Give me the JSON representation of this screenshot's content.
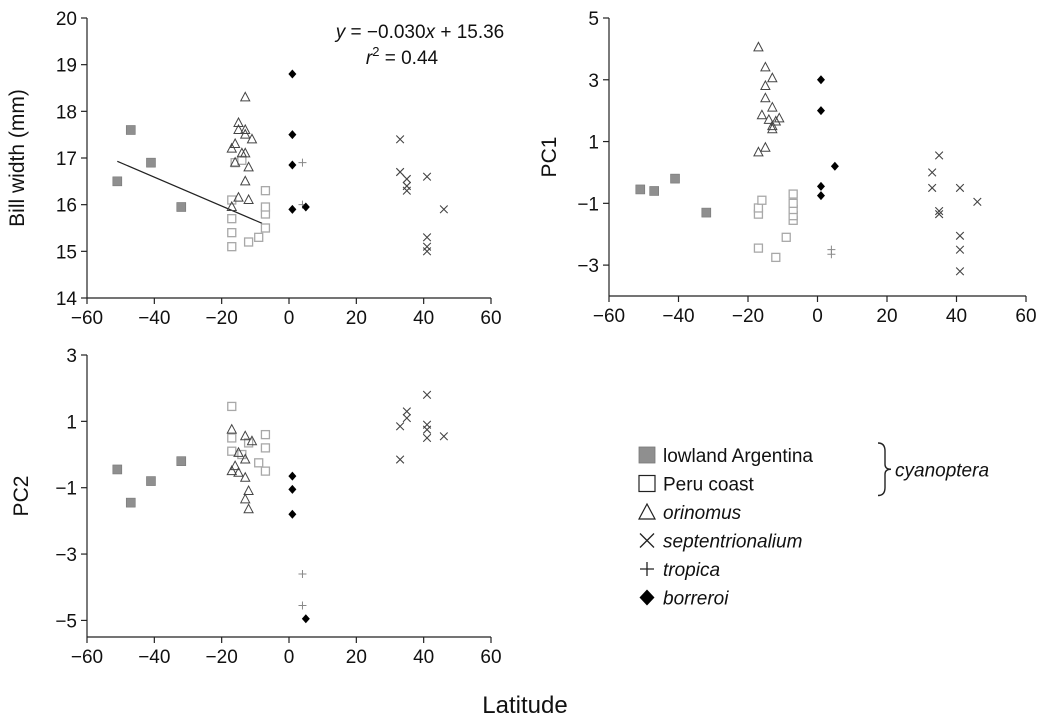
{
  "chart_data": [
    {
      "id": "bill",
      "type": "scatter",
      "xlim": [
        -60,
        60
      ],
      "ylim": [
        14,
        20
      ],
      "xticks": [
        -60,
        -40,
        -20,
        0,
        20,
        40,
        60
      ],
      "yticks": [
        14,
        15,
        16,
        17,
        18,
        19,
        20
      ],
      "ylabel": "Bill width (mm)",
      "equation": {
        "line1": "y = −0.030x + 15.36",
        "line2": "r² = 0.44"
      },
      "regression": {
        "x": [
          -51,
          -8
        ],
        "y": [
          16.93,
          15.6
        ]
      },
      "series": [
        {
          "key": "argentina",
          "points": [
            [
              -51,
              16.5
            ],
            [
              -47,
              17.6
            ],
            [
              -41,
              16.9
            ],
            [
              -32,
              15.95
            ]
          ]
        },
        {
          "key": "peru",
          "points": [
            [
              -17,
              15.1
            ],
            [
              -17,
              15.4
            ],
            [
              -17,
              15.7
            ],
            [
              -16,
              16.9
            ],
            [
              -17,
              16.1
            ],
            [
              -12,
              15.2
            ],
            [
              -9,
              15.3
            ],
            [
              -7,
              15.5
            ],
            [
              -7,
              15.8
            ],
            [
              -7,
              15.95
            ],
            [
              -7,
              16.3
            ],
            [
              -14,
              16.95
            ]
          ]
        },
        {
          "key": "orinomus",
          "points": [
            [
              -13,
              18.3
            ],
            [
              -15,
              17.75
            ],
            [
              -15,
              17.6
            ],
            [
              -13,
              17.6
            ],
            [
              -13,
              17.5
            ],
            [
              -11,
              17.4
            ],
            [
              -16,
              17.3
            ],
            [
              -17,
              17.2
            ],
            [
              -14,
              17.1
            ],
            [
              -13,
              17.1
            ],
            [
              -16,
              16.9
            ],
            [
              -12,
              16.8
            ],
            [
              -13,
              16.5
            ],
            [
              -15,
              16.15
            ],
            [
              -12,
              16.1
            ],
            [
              -17,
              15.95
            ]
          ]
        },
        {
          "key": "septentrionalium",
          "points": [
            [
              33,
              17.4
            ],
            [
              33,
              16.7
            ],
            [
              35,
              16.55
            ],
            [
              35,
              16.4
            ],
            [
              35,
              16.3
            ],
            [
              41,
              16.6
            ],
            [
              46,
              15.9
            ],
            [
              41,
              15.3
            ],
            [
              41,
              15.1
            ],
            [
              41,
              15.0
            ]
          ]
        },
        {
          "key": "tropica",
          "points": [
            [
              4,
              16.9
            ],
            [
              4,
              16.0
            ]
          ]
        },
        {
          "key": "borreroi",
          "points": [
            [
              1,
              18.8
            ],
            [
              1,
              17.5
            ],
            [
              1,
              16.85
            ],
            [
              5,
              15.95
            ],
            [
              1,
              15.9
            ]
          ]
        }
      ]
    },
    {
      "id": "pc1",
      "type": "scatter",
      "xlim": [
        -60,
        60
      ],
      "ylim": [
        -4,
        5
      ],
      "xticks": [
        -60,
        -40,
        -20,
        0,
        20,
        40,
        60
      ],
      "yticks": [
        -3,
        -1,
        1,
        3,
        5
      ],
      "ylabel": "PC1",
      "series": [
        {
          "key": "argentina",
          "points": [
            [
              -51,
              -0.55
            ],
            [
              -47,
              -0.6
            ],
            [
              -41,
              -0.2
            ],
            [
              -32,
              -1.3
            ]
          ]
        },
        {
          "key": "peru",
          "points": [
            [
              -17,
              -2.45
            ],
            [
              -12,
              -2.75
            ],
            [
              -9,
              -2.1
            ],
            [
              -17,
              -1.35
            ],
            [
              -17,
              -1.15
            ],
            [
              -16,
              -0.9
            ],
            [
              -7,
              -1.55
            ],
            [
              -7,
              -1.4
            ],
            [
              -7,
              -1.2
            ],
            [
              -7,
              -1.0
            ],
            [
              -7,
              -0.7
            ]
          ]
        },
        {
          "key": "orinomus",
          "points": [
            [
              -17,
              4.05
            ],
            [
              -15,
              3.4
            ],
            [
              -13,
              3.05
            ],
            [
              -15,
              2.8
            ],
            [
              -15,
              2.4
            ],
            [
              -13,
              2.1
            ],
            [
              -16,
              1.85
            ],
            [
              -11,
              1.75
            ],
            [
              -14,
              1.7
            ],
            [
              -12,
              1.65
            ],
            [
              -13,
              1.5
            ],
            [
              -13,
              1.4
            ],
            [
              -15,
              0.8
            ],
            [
              -17,
              0.65
            ]
          ]
        },
        {
          "key": "septentrionalium",
          "points": [
            [
              35,
              0.55
            ],
            [
              33,
              0.0
            ],
            [
              33,
              -0.5
            ],
            [
              41,
              -0.5
            ],
            [
              46,
              -0.95
            ],
            [
              35,
              -1.25
            ],
            [
              35,
              -1.35
            ],
            [
              41,
              -2.05
            ],
            [
              41,
              -2.5
            ],
            [
              41,
              -3.2
            ]
          ]
        },
        {
          "key": "tropica",
          "points": [
            [
              4,
              -2.5
            ],
            [
              4,
              -2.65
            ]
          ]
        },
        {
          "key": "borreroi",
          "points": [
            [
              1,
              3.0
            ],
            [
              1,
              2.0
            ],
            [
              5,
              0.2
            ],
            [
              1,
              -0.45
            ],
            [
              1,
              -0.75
            ]
          ]
        }
      ]
    },
    {
      "id": "pc2",
      "type": "scatter",
      "xlim": [
        -60,
        60
      ],
      "ylim": [
        -5.5,
        3
      ],
      "xticks": [
        -60,
        -40,
        -20,
        0,
        20,
        40,
        60
      ],
      "yticks": [
        -5,
        -3,
        -1,
        1,
        3
      ],
      "ylabel": "PC2",
      "series": [
        {
          "key": "argentina",
          "points": [
            [
              -51,
              -0.45
            ],
            [
              -47,
              -1.45
            ],
            [
              -41,
              -0.8
            ],
            [
              -32,
              -0.2
            ]
          ]
        },
        {
          "key": "peru",
          "points": [
            [
              -17,
              1.45
            ],
            [
              -17,
              0.5
            ],
            [
              -17,
              0.1
            ],
            [
              -14,
              0.0
            ],
            [
              -12,
              0.35
            ],
            [
              -9,
              -0.25
            ],
            [
              -7,
              0.6
            ],
            [
              -7,
              0.2
            ],
            [
              -7,
              -0.5
            ]
          ]
        },
        {
          "key": "orinomus",
          "points": [
            [
              -17,
              0.75
            ],
            [
              -13,
              0.55
            ],
            [
              -11,
              0.4
            ],
            [
              -15,
              0.05
            ],
            [
              -13,
              -0.15
            ],
            [
              -16,
              -0.35
            ],
            [
              -17,
              -0.5
            ],
            [
              -15,
              -0.55
            ],
            [
              -13,
              -0.7
            ],
            [
              -12,
              -1.1
            ],
            [
              -13,
              -1.35
            ],
            [
              -12,
              -1.65
            ]
          ]
        },
        {
          "key": "septentrionalium",
          "points": [
            [
              41,
              1.8
            ],
            [
              35,
              1.3
            ],
            [
              35,
              1.1
            ],
            [
              33,
              0.85
            ],
            [
              41,
              0.9
            ],
            [
              41,
              0.75
            ],
            [
              46,
              0.55
            ],
            [
              41,
              0.5
            ],
            [
              33,
              -0.15
            ]
          ]
        },
        {
          "key": "tropica",
          "points": [
            [
              4,
              -3.6
            ],
            [
              4,
              -4.55
            ]
          ]
        },
        {
          "key": "borreroi",
          "points": [
            [
              1,
              -0.65
            ],
            [
              1,
              -1.05
            ],
            [
              1,
              -1.8
            ],
            [
              5,
              -4.95
            ]
          ]
        }
      ]
    }
  ],
  "legend": [
    {
      "key": "argentina",
      "marker": "filled-square",
      "label": "lowland Argentina",
      "italic": false
    },
    {
      "key": "peru",
      "marker": "open-square",
      "label": "Peru coast",
      "italic": false
    },
    {
      "key": "orinomus",
      "marker": "open-triangle",
      "label": "orinomus",
      "italic": true
    },
    {
      "key": "septentrionalium",
      "marker": "x-cross",
      "label": "septentrionalium",
      "italic": true
    },
    {
      "key": "tropica",
      "marker": "plus",
      "label": "tropica",
      "italic": true
    },
    {
      "key": "borreroi",
      "marker": "filled-diamond",
      "label": "borreroi",
      "italic": true
    }
  ],
  "legend_group_label": "cyanoptera",
  "xlabel": "Latitude",
  "colors": {
    "argentina": "#8f8f8f",
    "peru": "#a8a8a8",
    "marker": "#444444",
    "tropica": "#888888",
    "borreroi": "#000000",
    "axis": "#222222"
  }
}
